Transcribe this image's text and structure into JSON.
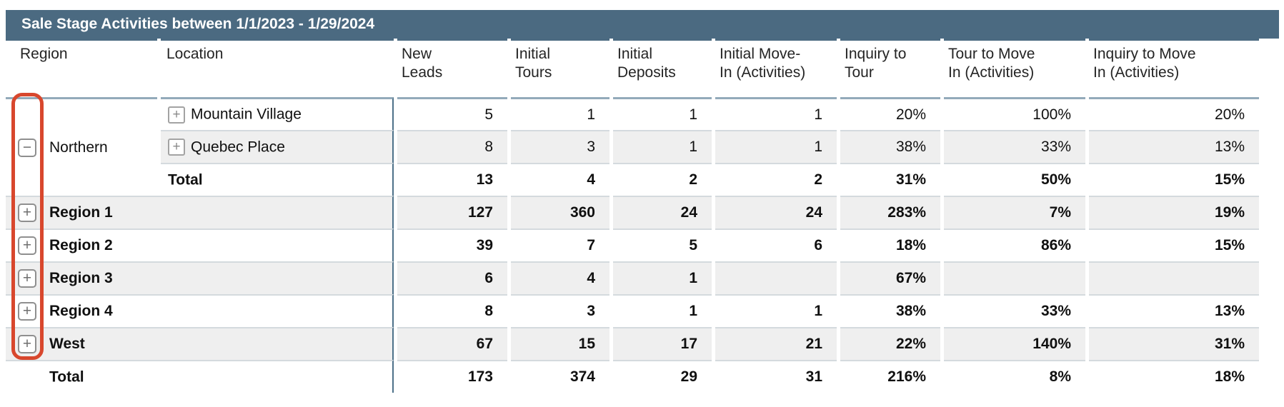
{
  "title": "Sale Stage Activities between 1/1/2023 - 1/29/2024",
  "icons": {
    "plus": "+",
    "minus": "−",
    "plus_meaning": "expand-toggle",
    "minus_meaning": "collapse-toggle"
  },
  "colors": {
    "title_bar": "#4b6a81",
    "annotation_red": "#d8472d",
    "row_shade": "#efefef",
    "column_divider": "#4d7189",
    "header_rule": "#93aaba"
  },
  "table": {
    "columns": [
      "Region",
      "Location",
      "New\nLeads",
      "Initial\nTours",
      "Initial\nDeposits",
      "Initial Move-\nIn (Activities)",
      "Inquiry to\nTour",
      "Tour to Move\nIn (Activities)",
      "Inquiry to Move\nIn (Activities)"
    ],
    "rows": [
      {
        "shaded": false,
        "bold": false,
        "cells": [
          {
            "cls": "region-cell",
            "rowspan": 3,
            "toggle": "minus",
            "label": "Northern",
            "name": "region-cell-northern"
          },
          {
            "cls": "loc-cell",
            "toggle": "plus",
            "toggle_cls": "loc",
            "label": "Mountain Village",
            "name": "location-cell-mountain-village"
          }
        ],
        "values": [
          "5",
          "1",
          "1",
          "1",
          "20%",
          "100%",
          "20%"
        ]
      },
      {
        "shaded": true,
        "bold": false,
        "cells": [
          {
            "cls": "loc-cell",
            "toggle": "plus",
            "toggle_cls": "loc",
            "label": "Quebec Place",
            "name": "location-cell-quebec-place"
          }
        ],
        "values": [
          "8",
          "3",
          "1",
          "1",
          "38%",
          "33%",
          "13%"
        ]
      },
      {
        "shaded": false,
        "bold": true,
        "cells": [
          {
            "cls": "loc-cell",
            "label": "Total",
            "name": "subtotal-cell-northern"
          }
        ],
        "values": [
          "13",
          "4",
          "2",
          "2",
          "31%",
          "50%",
          "15%"
        ]
      },
      {
        "shaded": true,
        "bold": true,
        "cells": [
          {
            "cls": "group-cell",
            "colspan": 2,
            "toggle": "plus",
            "label": "Region 1",
            "name": "region-cell-region-1"
          }
        ],
        "values": [
          "127",
          "360",
          "24",
          "24",
          "283%",
          "7%",
          "19%"
        ]
      },
      {
        "shaded": false,
        "bold": true,
        "cells": [
          {
            "cls": "group-cell",
            "colspan": 2,
            "toggle": "plus",
            "label": "Region 2",
            "name": "region-cell-region-2"
          }
        ],
        "values": [
          "39",
          "7",
          "5",
          "6",
          "18%",
          "86%",
          "15%"
        ]
      },
      {
        "shaded": true,
        "bold": true,
        "cells": [
          {
            "cls": "group-cell",
            "colspan": 2,
            "toggle": "plus",
            "label": "Region 3",
            "name": "region-cell-region-3"
          }
        ],
        "values": [
          "6",
          "4",
          "1",
          "",
          "67%",
          "",
          ""
        ]
      },
      {
        "shaded": false,
        "bold": true,
        "cells": [
          {
            "cls": "group-cell",
            "colspan": 2,
            "toggle": "plus",
            "label": "Region 4",
            "name": "region-cell-region-4"
          }
        ],
        "values": [
          "8",
          "3",
          "1",
          "1",
          "38%",
          "33%",
          "13%"
        ]
      },
      {
        "shaded": true,
        "bold": true,
        "cells": [
          {
            "cls": "group-cell",
            "colspan": 2,
            "toggle": "plus",
            "label": "West",
            "name": "region-cell-west"
          }
        ],
        "values": [
          "67",
          "15",
          "17",
          "21",
          "22%",
          "140%",
          "31%"
        ]
      },
      {
        "shaded": false,
        "bold": true,
        "cells": [
          {
            "cls": "group-cell",
            "colspan": 2,
            "spacer": true,
            "label": "Total",
            "name": "grand-total-cell"
          }
        ],
        "values": [
          "173",
          "374",
          "29",
          "31",
          "216%",
          "8%",
          "18%"
        ]
      }
    ]
  }
}
